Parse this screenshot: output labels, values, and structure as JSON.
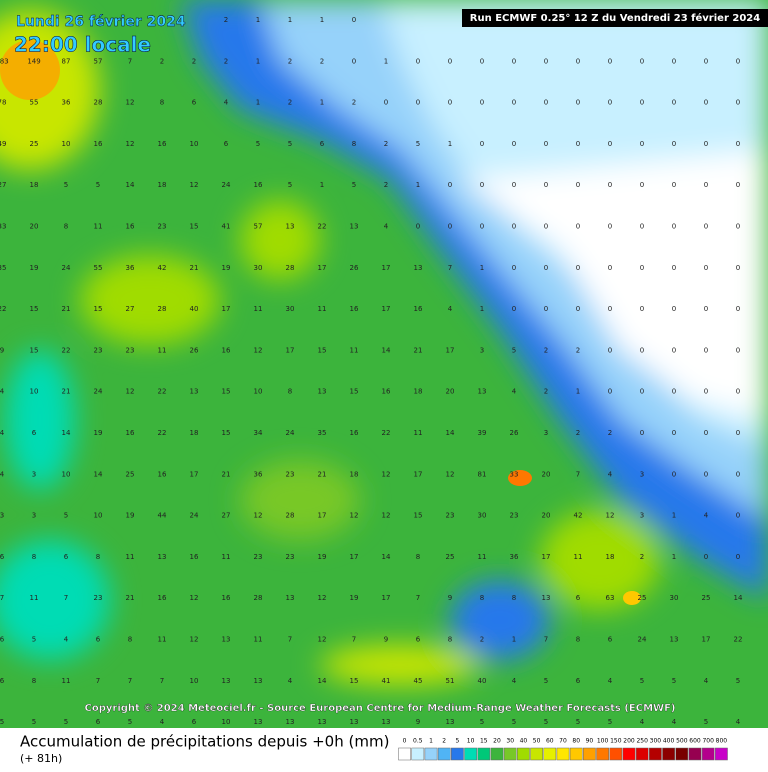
{
  "header": {
    "date": "Lundi 26 février 2024",
    "time": "22:00 locale",
    "run": "Run ECMWF 0.25° 12 Z du Vendredi 23 février 2024"
  },
  "copyright": "Copyright © 2024 Meteociel.fr - Source European Centre for Medium-Range Weather Forecasts (ECMWF)",
  "footer": {
    "title": "Accumulation de précipitations depuis +0h (mm)",
    "subtitle": "(+ 81h)"
  },
  "legend": {
    "labels": [
      0,
      0.5,
      1,
      2,
      5,
      10,
      15,
      20,
      30,
      40,
      50,
      60,
      70,
      80,
      90,
      100,
      150,
      200,
      250,
      300,
      400,
      500,
      600,
      700,
      800
    ],
    "colors": [
      "#ffffff",
      "#c8f0ff",
      "#96d2fa",
      "#50b4f5",
      "#2878eb",
      "#00dcb4",
      "#00c878",
      "#3cb43c",
      "#78c828",
      "#a0dc00",
      "#c8e600",
      "#e6f000",
      "#ffe600",
      "#ffc800",
      "#ffa000",
      "#ff7800",
      "#ff5000",
      "#ff0000",
      "#dc0000",
      "#b40000",
      "#8c0000",
      "#780000",
      "#960050",
      "#b4008c",
      "#c800c8"
    ]
  },
  "grid": {
    "rows": [
      [
        null,
        null,
        null,
        null,
        null,
        null,
        null,
        2,
        1,
        1,
        1,
        0,
        null,
        null,
        null,
        null,
        null,
        null,
        null,
        null,
        null,
        null,
        null,
        null
      ],
      [
        183,
        149,
        87,
        57,
        7,
        2,
        2,
        2,
        1,
        2,
        2,
        0,
        1,
        0,
        0,
        0,
        0,
        0,
        0,
        0,
        0,
        0,
        0,
        0
      ],
      [
        78,
        55,
        36,
        28,
        12,
        8,
        6,
        4,
        1,
        2,
        1,
        2,
        0,
        0,
        0,
        0,
        0,
        0,
        0,
        0,
        0,
        0,
        0,
        0
      ],
      [
        49,
        25,
        10,
        16,
        12,
        16,
        10,
        6,
        5,
        5,
        6,
        8,
        2,
        5,
        1,
        0,
        0,
        0,
        0,
        0,
        0,
        0,
        0,
        0
      ],
      [
        27,
        18,
        5,
        5,
        14,
        18,
        12,
        24,
        16,
        5,
        1,
        5,
        2,
        1,
        0,
        0,
        0,
        0,
        0,
        0,
        0,
        0,
        0,
        0
      ],
      [
        33,
        20,
        8,
        11,
        16,
        23,
        15,
        41,
        57,
        13,
        22,
        13,
        4,
        0,
        0,
        0,
        0,
        0,
        0,
        0,
        0,
        0,
        0,
        0
      ],
      [
        35,
        19,
        24,
        55,
        36,
        42,
        21,
        19,
        30,
        28,
        17,
        26,
        17,
        13,
        7,
        1,
        0,
        0,
        0,
        0,
        0,
        0,
        0,
        0
      ],
      [
        22,
        15,
        21,
        15,
        27,
        28,
        40,
        17,
        11,
        30,
        11,
        16,
        17,
        16,
        4,
        1,
        0,
        0,
        0,
        0,
        0,
        0,
        0,
        0
      ],
      [
        9,
        15,
        22,
        23,
        23,
        11,
        26,
        16,
        12,
        17,
        15,
        11,
        14,
        21,
        17,
        3,
        5,
        2,
        2,
        0,
        0,
        0,
        0,
        0
      ],
      [
        4,
        10,
        21,
        24,
        12,
        22,
        13,
        15,
        10,
        8,
        13,
        15,
        16,
        18,
        20,
        13,
        4,
        2,
        1,
        0,
        0,
        0,
        0,
        0
      ],
      [
        4,
        6,
        14,
        19,
        16,
        22,
        18,
        15,
        34,
        24,
        35,
        16,
        22,
        11,
        14,
        39,
        26,
        3,
        2,
        2,
        0,
        0,
        0,
        0
      ],
      [
        4,
        3,
        10,
        14,
        25,
        16,
        17,
        21,
        36,
        23,
        21,
        18,
        12,
        17,
        12,
        81,
        33,
        20,
        7,
        4,
        3,
        0,
        0,
        0
      ],
      [
        3,
        3,
        5,
        10,
        19,
        44,
        24,
        27,
        12,
        28,
        17,
        12,
        12,
        15,
        23,
        30,
        23,
        20,
        42,
        12,
        3,
        1,
        4,
        0
      ],
      [
        6,
        8,
        6,
        8,
        11,
        13,
        16,
        11,
        23,
        23,
        19,
        17,
        14,
        8,
        25,
        11,
        36,
        17,
        11,
        18,
        2,
        1,
        0,
        0
      ],
      [
        7,
        11,
        7,
        23,
        21,
        16,
        12,
        16,
        28,
        13,
        12,
        19,
        17,
        7,
        9,
        8,
        8,
        13,
        6,
        63,
        25,
        30,
        25,
        14
      ],
      [
        6,
        5,
        4,
        6,
        8,
        11,
        12,
        13,
        11,
        7,
        12,
        7,
        9,
        6,
        8,
        2,
        1,
        7,
        8,
        6,
        24,
        13,
        17,
        22
      ],
      [
        6,
        8,
        11,
        7,
        7,
        7,
        10,
        13,
        13,
        4,
        14,
        15,
        41,
        45,
        51,
        40,
        4,
        5,
        6,
        4,
        5,
        5,
        4,
        5
      ],
      [
        5,
        5,
        5,
        6,
        5,
        4,
        6,
        10,
        13,
        13,
        13,
        13,
        13,
        9,
        13,
        5,
        5,
        5,
        5,
        5,
        4,
        4,
        5,
        4
      ]
    ]
  }
}
